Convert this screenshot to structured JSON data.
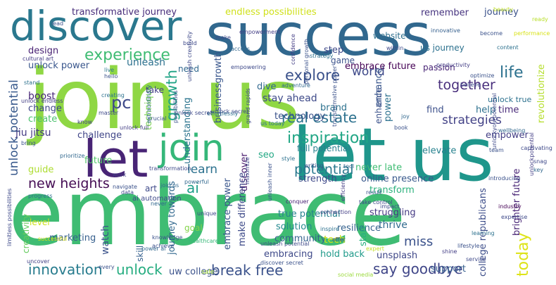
{
  "words": [
    {
      "text": "join us",
      "color": "#8fd744"
    },
    {
      "text": "embrace",
      "color": "#3fbc73"
    },
    {
      "text": "let us",
      "color": "#1f968b"
    },
    {
      "text": "success",
      "color": "#31688e"
    },
    {
      "text": "discover",
      "color": "#2a788e"
    },
    {
      "text": "let",
      "color": "#482475"
    },
    {
      "text": "join",
      "color": "#35b779"
    },
    {
      "text": "experience",
      "color": "#3fbc73"
    },
    {
      "text": "inspiration",
      "color": "#21a685"
    },
    {
      "text": "real estate",
      "color": "#2c718e"
    },
    {
      "text": "innovation",
      "color": "#287c8e"
    },
    {
      "text": "break free",
      "color": "#3b528b"
    },
    {
      "text": "say goodbye",
      "color": "#404688"
    },
    {
      "text": "unlock",
      "color": "#27ad81"
    },
    {
      "text": "potential",
      "color": "#2a788e"
    },
    {
      "text": "new heights",
      "color": "#450d54"
    },
    {
      "text": "explore",
      "color": "#3b528b"
    },
    {
      "text": "together",
      "color": "#472d7b"
    },
    {
      "text": "strategies",
      "color": "#424186"
    },
    {
      "text": "growth",
      "color": "#20a386"
    },
    {
      "text": "life",
      "color": "#2c718e"
    },
    {
      "text": "world",
      "color": "#3e4989"
    },
    {
      "text": "pc",
      "color": "#3e4989"
    },
    {
      "text": "ai",
      "color": "#1f9e89"
    },
    {
      "text": "learn",
      "color": "#2c718e"
    },
    {
      "text": "today",
      "color": "#dde318"
    },
    {
      "text": "unlock potential",
      "color": "#38598c"
    },
    {
      "text": "miss",
      "color": "#3b528b"
    },
    {
      "text": "transformative journey",
      "color": "#472c7a"
    },
    {
      "text": "endless possibilities",
      "color": "#d0e11c"
    },
    {
      "text": "remember",
      "color": "#46337f"
    },
    {
      "text": "journey",
      "color": "#3b528b"
    },
    {
      "text": "unleash",
      "color": "#2c718e"
    },
    {
      "text": "unlock power",
      "color": "#39568c"
    },
    {
      "text": "design",
      "color": "#482173"
    },
    {
      "text": "boost",
      "color": "#482878"
    },
    {
      "text": "change",
      "color": "#3f4788"
    },
    {
      "text": "create",
      "color": "#4ac16d"
    },
    {
      "text": "jiu jitsu",
      "color": "#443a83"
    },
    {
      "text": "guide",
      "color": "#addc30"
    },
    {
      "text": "challenge",
      "color": "#404688"
    },
    {
      "text": "marketing",
      "color": "#355f8d"
    },
    {
      "text": "watch",
      "color": "#3b528b"
    },
    {
      "text": "journey towards",
      "color": "#31688e"
    },
    {
      "text": "uw college",
      "color": "#3b528b"
    },
    {
      "text": "embrace future",
      "color": "#440154"
    },
    {
      "text": "stay ahead",
      "color": "#3e4a89"
    },
    {
      "text": "technology",
      "color": "#3b528b"
    },
    {
      "text": "embrace power",
      "color": "#39558c"
    },
    {
      "text": "discover",
      "color": "#481a6c"
    },
    {
      "text": "community",
      "color": "#34618d"
    },
    {
      "text": "solution",
      "color": "#23898e"
    },
    {
      "text": "true potential",
      "color": "#26828e"
    },
    {
      "text": "tech",
      "color": "#d2e21b"
    },
    {
      "text": "thrive",
      "color": "#306a8e"
    },
    {
      "text": "embracing",
      "color": "#3e4989"
    },
    {
      "text": "hold back",
      "color": "#1f9a8a"
    },
    {
      "text": "unsplash",
      "color": "#3f4788"
    },
    {
      "text": "support",
      "color": "#355f8d"
    },
    {
      "text": "college republicans",
      "color": "#3d4e8a"
    },
    {
      "text": "elevate",
      "color": "#26818e"
    },
    {
      "text": "empower",
      "color": "#433e85"
    },
    {
      "text": "transform",
      "color": "#2db27d"
    },
    {
      "text": "full potential",
      "color": "#27808e"
    },
    {
      "text": "never late",
      "color": "#3fbc73"
    },
    {
      "text": "online presence",
      "color": "#38598c"
    },
    {
      "text": "strength",
      "color": "#3e4989"
    },
    {
      "text": "resilience",
      "color": "#34618d"
    },
    {
      "text": "struggling",
      "color": "#443983"
    },
    {
      "text": "brighter future",
      "color": "#482475"
    },
    {
      "text": "help",
      "color": "#2d708e"
    },
    {
      "text": "time",
      "color": "#482979"
    },
    {
      "text": "find",
      "color": "#3c508b"
    },
    {
      "text": "revolutionize",
      "color": "#b5de2b"
    },
    {
      "text": "brand",
      "color": "#2c718e"
    },
    {
      "text": "businessgrowth",
      "color": "#39568c"
    },
    {
      "text": "technique",
      "color": "#7ad151"
    },
    {
      "text": "understanding",
      "color": "#2b748e"
    },
    {
      "text": "future",
      "color": "#52c569"
    },
    {
      "text": "need",
      "color": "#31688e"
    },
    {
      "text": "take",
      "color": "#433e85"
    },
    {
      "text": "dive",
      "color": "#31688e"
    },
    {
      "text": "step",
      "color": "#3e4989"
    },
    {
      "text": "game",
      "color": "#3b528b"
    },
    {
      "text": "website",
      "color": "#2e6f8e"
    },
    {
      "text": "us journey",
      "color": "#2c718e"
    },
    {
      "text": "passion",
      "color": "#482475"
    },
    {
      "text": "enhance",
      "color": "#39568c"
    },
    {
      "text": "seo",
      "color": "#22a884"
    },
    {
      "text": "art",
      "color": "#3e4989"
    },
    {
      "text": "power",
      "color": "#2c718e"
    },
    {
      "text": "make difference",
      "color": "#3e4a89"
    },
    {
      "text": "start",
      "color": "#29af7f"
    },
    {
      "text": "goal",
      "color": "#84d44b"
    },
    {
      "text": "skill",
      "color": "#355f8d"
    },
    {
      "text": "level",
      "color": "#cde11d"
    },
    {
      "text": "creativity",
      "color": "#65cb5e"
    },
    {
      "text": "enhance",
      "color": "#3b528b"
    },
    {
      "text": "unlock true",
      "color": "#2c718e"
    },
    {
      "text": "ai automation",
      "color": "#3e4989"
    },
    {
      "text": "cultural art",
      "color": "#443b84"
    },
    {
      "text": "live",
      "color": "#2a788e"
    },
    {
      "text": "hello",
      "color": "#3b528b"
    },
    {
      "text": "beauty",
      "color": "#c0df25"
    },
    {
      "text": "ready",
      "color": "#b8de29"
    },
    {
      "text": "sale",
      "color": "#a2da37"
    },
    {
      "text": "uncover",
      "color": "#424186"
    },
    {
      "text": "shine",
      "color": "#433e85"
    },
    {
      "text": "lifestyle",
      "color": "#3b528b"
    },
    {
      "text": "service",
      "color": "#3e4989"
    },
    {
      "text": "social media",
      "color": "#9bd93c"
    },
    {
      "text": "every",
      "color": "#3b528b"
    },
    {
      "text": "healthcare",
      "color": "#37b878"
    },
    {
      "text": "offer",
      "color": "#3e4989"
    },
    {
      "text": "expert",
      "color": "#c2df23"
    },
    {
      "text": "learning",
      "color": "#2c718e"
    },
    {
      "text": "industry",
      "color": "#440154"
    },
    {
      "text": "key",
      "color": "#31688e"
    },
    {
      "text": "team",
      "color": "#3b528b"
    },
    {
      "text": "expertise",
      "color": "#3e4989"
    },
    {
      "text": "result",
      "color": "#3b528b"
    },
    {
      "text": "take control",
      "color": "#3e4989"
    },
    {
      "text": "connection",
      "color": "#433e85"
    },
    {
      "text": "conquer",
      "color": "#482475"
    },
    {
      "text": "inspire",
      "color": "#2c718e"
    },
    {
      "text": "writing",
      "color": "#3b528b"
    },
    {
      "text": "tool",
      "color": "#31688e"
    },
    {
      "text": "introducing",
      "color": "#3b528b"
    },
    {
      "text": "captivating",
      "color": "#3e4989"
    },
    {
      "text": "wellbeing",
      "color": "#31688e"
    },
    {
      "text": "optimize",
      "color": "#3b528b"
    },
    {
      "text": "believe",
      "color": "#3e4989"
    },
    {
      "text": "productivity",
      "color": "#433e85"
    },
    {
      "text": "performance",
      "color": "#d8e219"
    },
    {
      "text": "become",
      "color": "#3b528b"
    },
    {
      "text": "content",
      "color": "#2c718e"
    },
    {
      "text": "within",
      "color": "#3e4989"
    },
    {
      "text": "innovative",
      "color": "#355f8d"
    },
    {
      "text": "access",
      "color": "#31688e"
    },
    {
      "text": "make",
      "color": "#3e4989"
    },
    {
      "text": "empowerment",
      "color": "#433e85"
    },
    {
      "text": "lead",
      "color": "#3b528b"
    },
    {
      "text": "build",
      "color": "#3e4989"
    },
    {
      "text": "creating",
      "color": "#2c718e"
    },
    {
      "text": "unleash creativity",
      "color": "#3e4989"
    },
    {
      "text": "personal growth",
      "color": "#3b528b"
    },
    {
      "text": "confidence",
      "color": "#433e85"
    },
    {
      "text": "empowering",
      "color": "#3e4989"
    },
    {
      "text": "strategy",
      "color": "#2c718e"
    },
    {
      "text": "adventure",
      "color": "#31688e"
    },
    {
      "text": "discover secret",
      "color": "#3b528b"
    },
    {
      "text": "unleash potential",
      "color": "#3e4989"
    },
    {
      "text": "unlock endless",
      "color": "#433e85"
    },
    {
      "text": "stand",
      "color": "#2c718e"
    },
    {
      "text": "transformation",
      "color": "#3e4989"
    },
    {
      "text": "navigate",
      "color": "#3b528b"
    },
    {
      "text": "join us",
      "color": "#31688e"
    },
    {
      "text": "master",
      "color": "#3e4989"
    },
    {
      "text": "crucial",
      "color": "#3b528b"
    },
    {
      "text": "unlock full",
      "color": "#433e85"
    },
    {
      "text": "effortlessly",
      "color": "#2c718e"
    },
    {
      "text": "unlock secret",
      "color": "#3e4989"
    },
    {
      "text": "prioritize",
      "color": "#31688e"
    },
    {
      "text": "bring",
      "color": "#3b528b"
    },
    {
      "text": "work",
      "color": "#433e85"
    },
    {
      "text": "data",
      "color": "#3e4989"
    },
    {
      "text": "progress",
      "color": "#2c718e"
    },
    {
      "text": "powerful",
      "color": "#31688e"
    },
    {
      "text": "knowledge",
      "color": "#3b528b"
    },
    {
      "text": "unique",
      "color": "#3e4989"
    },
    {
      "text": "power ai",
      "color": "#31688e"
    },
    {
      "text": "achieve",
      "color": "#3b528b"
    },
    {
      "text": "successful",
      "color": "#dde318"
    },
    {
      "text": "efficiency",
      "color": "#433e85"
    },
    {
      "text": "maximize",
      "color": "#3e4989"
    },
    {
      "text": "style",
      "color": "#2c718e"
    },
    {
      "text": "book",
      "color": "#3b528b"
    },
    {
      "text": "joy",
      "color": "#31688e"
    },
    {
      "text": "snag",
      "color": "#3e4989"
    },
    {
      "text": "unlockpotential",
      "color": "#433e85"
    },
    {
      "text": "unleash inner",
      "color": "#3b528b"
    },
    {
      "text": "unlock secret",
      "color": "#3e4989"
    },
    {
      "text": "us today",
      "color": "#2c718e"
    },
    {
      "text": "grand rapids",
      "color": "#3e4989"
    },
    {
      "text": "extraordinary",
      "color": "#31688e"
    },
    {
      "text": "possibilities",
      "color": "#3b528b"
    },
    {
      "text": "limitless possibilities",
      "color": "#3e4989"
    },
    {
      "text": "know",
      "color": "#433e85"
    },
    {
      "text": "transformative power",
      "color": "#3b528b"
    },
    {
      "text": "impact",
      "color": "#3e4989"
    },
    {
      "text": "never",
      "color": "#31688e"
    },
    {
      "text": "unlockyourpotential",
      "color": "#3e4989"
    }
  ]
}
